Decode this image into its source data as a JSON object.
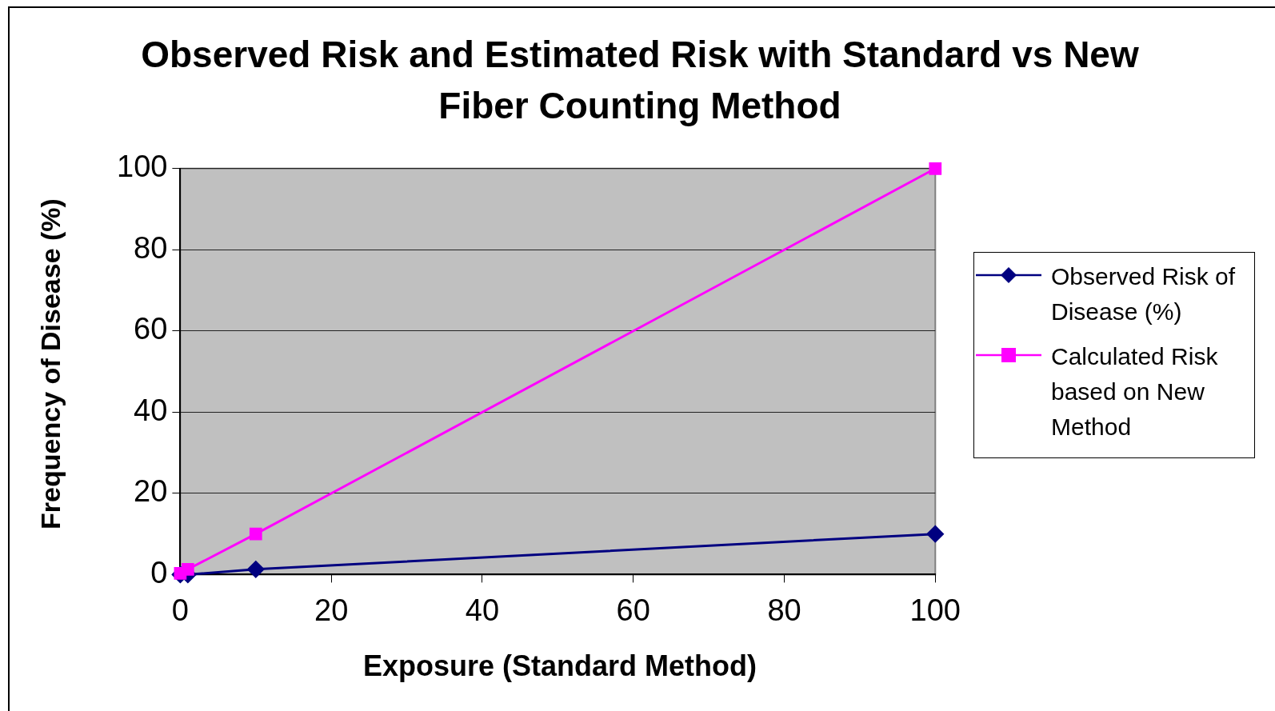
{
  "chart_data": {
    "type": "line",
    "title": "Observed Risk and Estimated Risk with Standard vs New Fiber Counting Method",
    "xlabel": "Exposure (Standard Method)",
    "ylabel": "Frequency of Disease (%)",
    "series": [
      {
        "name": "Observed Risk of Disease (%)",
        "color": "#000080",
        "marker": "diamond",
        "x": [
          0,
          1,
          10,
          100
        ],
        "values": [
          0,
          0,
          1.3,
          10
        ]
      },
      {
        "name": "Calculated Risk based on New Method",
        "color": "#ff00ff",
        "marker": "square",
        "x": [
          0,
          1,
          10,
          100
        ],
        "values": [
          0.3,
          1.3,
          10,
          100
        ]
      }
    ],
    "xlim": [
      0,
      100
    ],
    "xticks": [
      0,
      20,
      40,
      60,
      80,
      100
    ],
    "ylim": [
      0,
      100
    ],
    "yticks": [
      0,
      20,
      40,
      60,
      80,
      100
    ],
    "grid": "y",
    "legend": "right",
    "line_style": "solid"
  }
}
